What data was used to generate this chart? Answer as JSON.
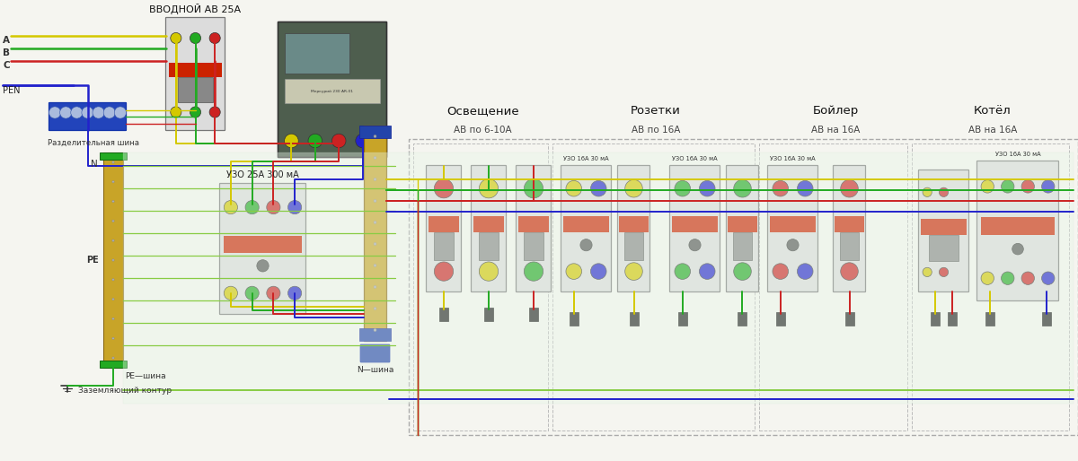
{
  "bg_color": "#f5f5f0",
  "wire_colors": {
    "phase_A": "#d4c800",
    "phase_B": "#22aa22",
    "phase_C": "#cc2222",
    "neutral": "#2222cc",
    "ground": "#44cc44",
    "pen": "#2222cc"
  },
  "labels": {
    "input_breaker": "ВВОДНОЙ АВ 25А",
    "pen": "PEN",
    "split_bus": "Разделительная шина",
    "neutral_N": "N",
    "uzo_main": "УЗО 25А 300 мА",
    "pe_label": "РЕ",
    "ground_contour": "Заземляющий контур",
    "pe_bus": "РЕ—шина",
    "n_bus": "N—шина",
    "section1_title": "Освещение",
    "section1_sub": "АВ по 6-10А",
    "section2_title": "Розетки",
    "section2_sub": "АВ по 16А",
    "section3_title": "Бойлер",
    "section3_sub": "АВ на 16А",
    "section4_title": "Котёл",
    "section4_sub": "АВ на 16А",
    "uzo_16_30": "УЗО 16А 30 мА",
    "phase_A_label": "А",
    "phase_B_label": "В",
    "phase_C_label": "С"
  },
  "component_color": "#dcdcdc",
  "component_border": "#999999",
  "abb_red": "#cc2200",
  "dot_yellow": "#d4c800",
  "dot_green": "#22aa22",
  "dot_red": "#cc2222",
  "dot_blue": "#2222cc",
  "bus_gold": "#c8a428",
  "bus_blue": "#2244cc",
  "bus_green": "#229922"
}
